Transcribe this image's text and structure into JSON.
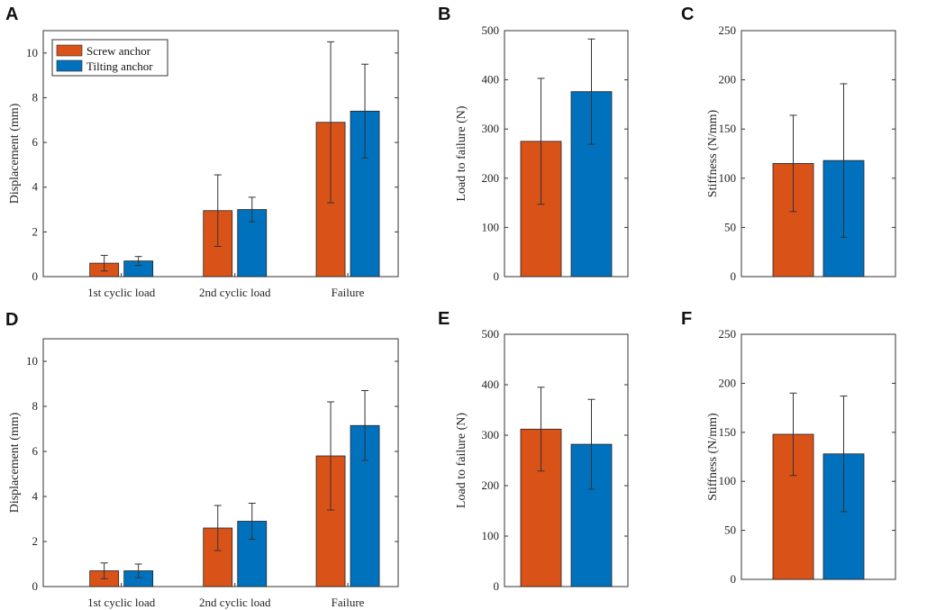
{
  "colors": {
    "screw": "#D95319",
    "tilting": "#0072BD"
  },
  "chart_data": [
    {
      "panel": "A",
      "type": "bar",
      "categories": [
        "1st cyclic load",
        "2nd cyclic load",
        "Failure"
      ],
      "series": [
        {
          "name": "Screw anchor",
          "values": [
            0.6,
            2.95,
            6.9
          ],
          "errors": [
            0.35,
            1.6,
            3.6
          ]
        },
        {
          "name": "Tilting anchor",
          "values": [
            0.7,
            3.0,
            7.4
          ],
          "errors": [
            0.2,
            0.55,
            2.1
          ]
        }
      ],
      "ylabel": "Displacement (mm)",
      "ylim": [
        0,
        11
      ],
      "yticks": [
        0,
        2,
        4,
        6,
        8,
        10
      ],
      "legend": {
        "position": "top-left",
        "entries": [
          "Screw anchor",
          "Tilting anchor"
        ]
      }
    },
    {
      "panel": "B",
      "type": "bar",
      "categories": [
        ""
      ],
      "series": [
        {
          "name": "Screw anchor",
          "values": [
            275
          ],
          "errors": [
            128
          ]
        },
        {
          "name": "Tilting anchor",
          "values": [
            376
          ],
          "errors": [
            107
          ]
        }
      ],
      "ylabel": "Load to failure (N)",
      "ylim": [
        0,
        500
      ],
      "yticks": [
        0,
        100,
        200,
        300,
        400,
        500
      ]
    },
    {
      "panel": "C",
      "type": "bar",
      "categories": [
        ""
      ],
      "series": [
        {
          "name": "Screw anchor",
          "values": [
            115
          ],
          "errors": [
            49
          ]
        },
        {
          "name": "Tilting anchor",
          "values": [
            118
          ],
          "errors": [
            78
          ]
        }
      ],
      "ylabel": "Stiffness (N/mm)",
      "ylim": [
        0,
        250
      ],
      "yticks": [
        0,
        50,
        100,
        150,
        200,
        250
      ]
    },
    {
      "panel": "D",
      "type": "bar",
      "categories": [
        "1st cyclic load",
        "2nd cyclic load",
        "Failure"
      ],
      "series": [
        {
          "name": "Screw anchor",
          "values": [
            0.7,
            2.6,
            5.8
          ],
          "errors": [
            0.35,
            1.0,
            2.4
          ]
        },
        {
          "name": "Tilting anchor",
          "values": [
            0.7,
            2.9,
            7.15
          ],
          "errors": [
            0.3,
            0.8,
            1.55
          ]
        }
      ],
      "ylabel": "Displacement (mm)",
      "ylim": [
        0,
        11
      ],
      "yticks": [
        0,
        2,
        4,
        6,
        8,
        10
      ]
    },
    {
      "panel": "E",
      "type": "bar",
      "categories": [
        ""
      ],
      "series": [
        {
          "name": "Screw anchor",
          "values": [
            312
          ],
          "errors": [
            83
          ]
        },
        {
          "name": "Tilting anchor",
          "values": [
            282
          ],
          "errors": [
            89
          ]
        }
      ],
      "ylabel": "Load to failure (N)",
      "ylim": [
        0,
        500
      ],
      "yticks": [
        0,
        100,
        200,
        300,
        400,
        500
      ]
    },
    {
      "panel": "F",
      "type": "bar",
      "categories": [
        ""
      ],
      "series": [
        {
          "name": "Screw anchor",
          "values": [
            148
          ],
          "errors": [
            42
          ]
        },
        {
          "name": "Tilting anchor",
          "values": [
            128
          ],
          "errors": [
            59
          ]
        }
      ],
      "ylabel": "Stiffness (N/mm)",
      "ylim": [
        0,
        250
      ],
      "yticks": [
        0,
        50,
        100,
        150,
        200,
        250
      ]
    }
  ]
}
